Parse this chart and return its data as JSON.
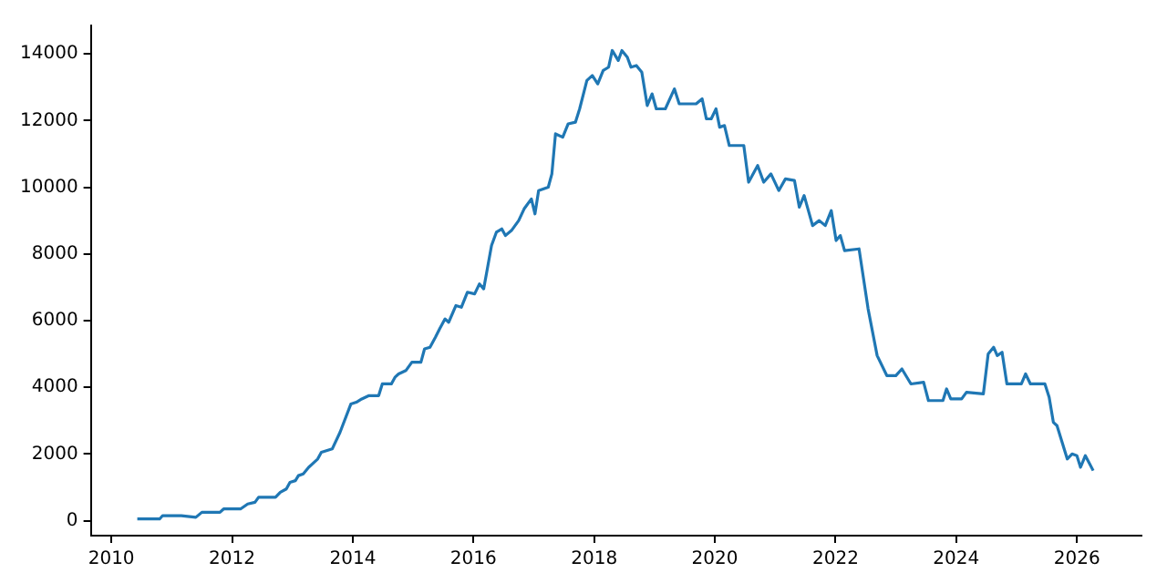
{
  "chart_data": {
    "type": "line",
    "xlim": [
      2009.66,
      2027.07
    ],
    "xticks": [
      2010,
      2012,
      2014,
      2016,
      2018,
      2020,
      2022,
      2024,
      2026
    ],
    "ylim": [
      -450,
      14850
    ],
    "yticks": [
      0,
      2000,
      4000,
      6000,
      8000,
      10000,
      12000,
      14000
    ],
    "grid": false,
    "legend": false,
    "marker": "none",
    "line_style": "solid",
    "series": [
      {
        "color": "#1f77b4",
        "x": [
          2010.43,
          2010.8,
          2010.85,
          2011.16,
          2011.4,
          2011.5,
          2011.8,
          2011.86,
          2012.14,
          2012.26,
          2012.38,
          2012.44,
          2012.72,
          2012.8,
          2012.9,
          2012.96,
          2013.05,
          2013.1,
          2013.18,
          2013.27,
          2013.33,
          2013.42,
          2013.48,
          2013.66,
          2013.79,
          2013.97,
          2014.06,
          2014.15,
          2014.27,
          2014.43,
          2014.49,
          2014.64,
          2014.7,
          2014.76,
          2014.88,
          2014.98,
          2015.13,
          2015.19,
          2015.28,
          2015.37,
          2015.44,
          2015.53,
          2015.59,
          2015.71,
          2015.8,
          2015.9,
          2016.02,
          2016.1,
          2016.17,
          2016.23,
          2016.3,
          2016.38,
          2016.47,
          2016.53,
          2016.63,
          2016.75,
          2016.84,
          2016.96,
          2017.02,
          2017.08,
          2017.24,
          2017.3,
          2017.36,
          2017.48,
          2017.57,
          2017.69,
          2017.76,
          2017.88,
          2017.97,
          2018.06,
          2018.15,
          2018.24,
          2018.3,
          2018.4,
          2018.46,
          2018.55,
          2018.61,
          2018.7,
          2018.79,
          2018.88,
          2018.96,
          2019.03,
          2019.18,
          2019.33,
          2019.41,
          2019.69,
          2019.79,
          2019.86,
          2019.94,
          2020.02,
          2020.08,
          2020.16,
          2020.24,
          2020.48,
          2020.56,
          2020.71,
          2020.81,
          2020.93,
          2021.06,
          2021.17,
          2021.32,
          2021.4,
          2021.48,
          2021.62,
          2021.73,
          2021.83,
          2021.93,
          2022.01,
          2022.08,
          2022.15,
          2022.39,
          2022.54,
          2022.69,
          2022.85,
          2023.0,
          2023.1,
          2023.25,
          2023.46,
          2023.54,
          2023.78,
          2023.84,
          2023.91,
          2024.09,
          2024.17,
          2024.45,
          2024.53,
          2024.62,
          2024.68,
          2024.76,
          2024.84,
          2025.08,
          2025.15,
          2025.23,
          2025.47,
          2025.54,
          2025.61,
          2025.67,
          2025.84,
          2025.92,
          2026.0,
          2026.06,
          2026.14,
          2026.27
        ],
        "values": [
          50,
          50,
          150,
          150,
          100,
          250,
          250,
          350,
          350,
          500,
          550,
          700,
          700,
          850,
          950,
          1150,
          1200,
          1350,
          1400,
          1600,
          1700,
          1850,
          2050,
          2150,
          2650,
          3500,
          3550,
          3650,
          3750,
          3750,
          4100,
          4100,
          4300,
          4400,
          4500,
          4750,
          4750,
          5150,
          5200,
          5500,
          5750,
          6050,
          5950,
          6450,
          6400,
          6850,
          6800,
          7100,
          6950,
          7550,
          8250,
          8650,
          8750,
          8550,
          8700,
          9000,
          9350,
          9650,
          9200,
          9900,
          10000,
          10400,
          11600,
          11500,
          11900,
          11950,
          12350,
          13200,
          13350,
          13100,
          13500,
          13600,
          14100,
          13800,
          14100,
          13900,
          13600,
          13650,
          13450,
          12450,
          12800,
          12350,
          12350,
          12950,
          12500,
          12500,
          12650,
          12050,
          12050,
          12350,
          11800,
          11850,
          11250,
          11250,
          10150,
          10650,
          10150,
          10400,
          9900,
          10250,
          10200,
          9400,
          9750,
          8850,
          9000,
          8850,
          9300,
          8400,
          8550,
          8100,
          8150,
          6350,
          4950,
          4350,
          4350,
          4550,
          4100,
          4150,
          3600,
          3600,
          3950,
          3650,
          3650,
          3850,
          3800,
          5000,
          5200,
          4950,
          5050,
          4100,
          4100,
          4400,
          4100,
          4100,
          3700,
          2950,
          2850,
          1850,
          2000,
          1950,
          1600,
          1950,
          1500
        ]
      }
    ]
  }
}
